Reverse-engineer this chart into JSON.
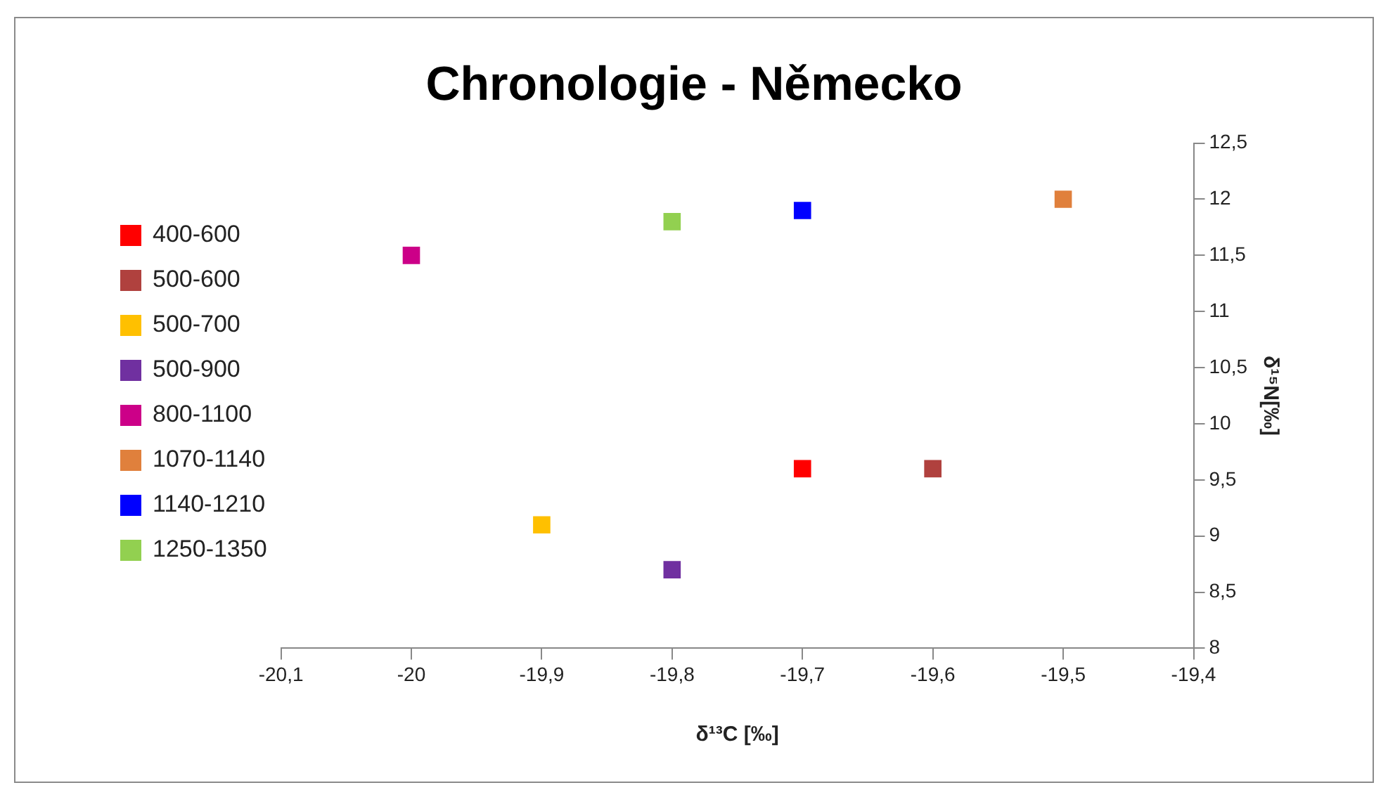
{
  "chart_data": {
    "type": "scatter",
    "title": "Chronologie - Německo",
    "xlabel": "δ¹³C [‰]",
    "ylabel": "δ¹⁵N[‰]",
    "xlim": [
      -20.1,
      -19.4
    ],
    "xticks": [
      {
        "value": -20.1,
        "label": "-20,1"
      },
      {
        "value": -20,
        "label": "-20"
      },
      {
        "value": -19.9,
        "label": "-19,9"
      },
      {
        "value": -19.8,
        "label": "-19,8"
      },
      {
        "value": -19.7,
        "label": "-19,7"
      },
      {
        "value": -19.6,
        "label": "-19,6"
      },
      {
        "value": -19.5,
        "label": "-19,5"
      },
      {
        "value": -19.4,
        "label": "-19,4"
      }
    ],
    "ylim": [
      8,
      12.5
    ],
    "yticks": [
      8,
      {
        "value": 8.5,
        "label": "8,5"
      },
      9,
      {
        "value": 9.5,
        "label": "9,5"
      },
      10,
      {
        "value": 10.5,
        "label": "10,5"
      },
      11,
      {
        "value": 11.5,
        "label": "11,5"
      },
      12,
      {
        "value": 12.5,
        "label": "12,5"
      }
    ],
    "grid": false,
    "legend": "left",
    "marker": "square",
    "series": [
      {
        "name": "400-600",
        "color": "#ff0000",
        "x": [
          -19.7
        ],
        "values": [
          9.6
        ]
      },
      {
        "name": "500-600",
        "color": "#b0413e",
        "x": [
          -19.6
        ],
        "values": [
          9.6
        ]
      },
      {
        "name": "500-700",
        "color": "#ffc000",
        "x": [
          -19.9
        ],
        "values": [
          9.1
        ]
      },
      {
        "name": "500-900",
        "color": "#7030a0",
        "x": [
          -19.8
        ],
        "values": [
          8.7
        ]
      },
      {
        "name": "800-1100",
        "color": "#cc0088",
        "x": [
          -20.0
        ],
        "values": [
          11.5
        ]
      },
      {
        "name": "1070-1140",
        "color": "#e0803c",
        "x": [
          -19.5
        ],
        "values": [
          12.0
        ]
      },
      {
        "name": "1140-1210",
        "color": "#0000ff",
        "x": [
          -19.7
        ],
        "values": [
          11.9
        ]
      },
      {
        "name": "1250-1350",
        "color": "#92d050",
        "x": [
          -19.8
        ],
        "values": [
          11.8
        ]
      }
    ]
  }
}
